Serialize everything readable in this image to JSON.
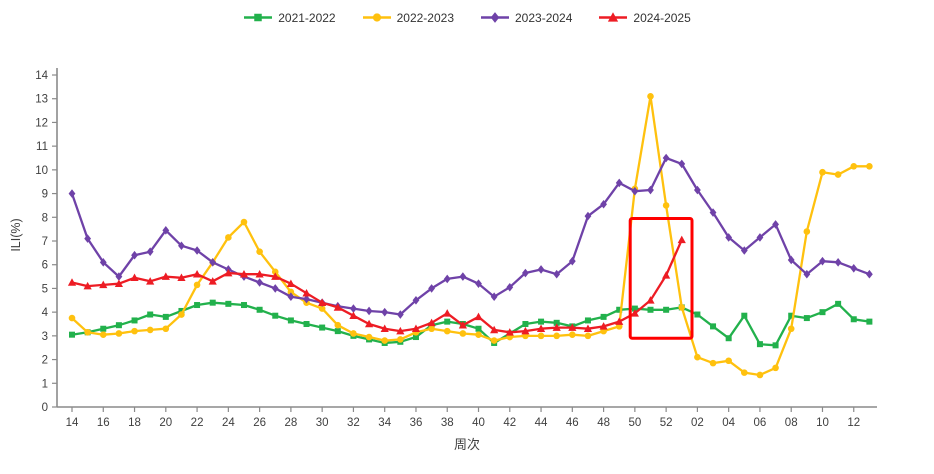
{
  "page": {
    "background": "#ffffff"
  },
  "chart_data": {
    "type": "line",
    "title": "",
    "xlabel": "周次",
    "ylabel": "ILI(%)",
    "ylim": [
      0,
      14
    ],
    "y_ticks": [
      0,
      1,
      2,
      3,
      4,
      5,
      6,
      7,
      8,
      9,
      10,
      11,
      12,
      13,
      14
    ],
    "grid": false,
    "legend_position": "top",
    "categories": [
      "14",
      "15",
      "16",
      "17",
      "18",
      "19",
      "20",
      "21",
      "22",
      "23",
      "24",
      "25",
      "26",
      "27",
      "28",
      "29",
      "30",
      "31",
      "32",
      "33",
      "34",
      "35",
      "36",
      "37",
      "38",
      "39",
      "40",
      "41",
      "42",
      "43",
      "44",
      "45",
      "46",
      "47",
      "48",
      "49",
      "50",
      "51",
      "52",
      "01",
      "02",
      "03",
      "04",
      "05",
      "06",
      "07",
      "08",
      "09",
      "10",
      "11",
      "12",
      "13"
    ],
    "series": [
      {
        "name": "2021-2022",
        "marker": "square",
        "color": "#22B14C",
        "values": [
          3.05,
          3.15,
          3.3,
          3.45,
          3.65,
          3.9,
          3.8,
          4.05,
          4.3,
          4.4,
          4.35,
          4.3,
          4.1,
          3.85,
          3.65,
          3.5,
          3.35,
          3.2,
          3.0,
          2.85,
          2.7,
          2.75,
          2.95,
          3.45,
          3.6,
          3.5,
          3.3,
          2.7,
          3.1,
          3.5,
          3.6,
          3.55,
          3.4,
          3.65,
          3.8,
          4.1,
          4.15,
          4.1,
          4.1,
          4.2,
          3.9,
          3.4,
          2.9,
          3.85,
          2.65,
          2.6,
          3.85,
          3.75,
          4.0,
          4.35,
          3.7,
          3.6
        ]
      },
      {
        "name": "2022-2023",
        "marker": "circle",
        "color": "#FFC10E",
        "values": [
          3.75,
          3.15,
          3.05,
          3.1,
          3.2,
          3.25,
          3.3,
          3.9,
          5.15,
          6.1,
          7.15,
          7.8,
          6.55,
          5.7,
          4.85,
          4.4,
          4.15,
          3.45,
          3.1,
          2.95,
          2.8,
          2.85,
          3.15,
          3.3,
          3.2,
          3.1,
          3.05,
          2.8,
          2.95,
          3.0,
          3.0,
          3.0,
          3.05,
          3.0,
          3.2,
          3.4,
          9.2,
          13.1,
          8.5,
          4.2,
          2.1,
          1.85,
          1.95,
          1.45,
          1.35,
          1.65,
          3.3,
          7.4,
          9.9,
          9.8,
          10.15,
          10.15
        ]
      },
      {
        "name": "2023-2024",
        "marker": "diamond",
        "color": "#6F42A8",
        "values": [
          9.0,
          7.1,
          6.1,
          5.5,
          6.4,
          6.55,
          7.45,
          6.8,
          6.6,
          6.1,
          5.8,
          5.5,
          5.25,
          5.0,
          4.65,
          4.55,
          4.4,
          4.25,
          4.15,
          4.05,
          4.0,
          3.9,
          4.5,
          5.0,
          5.4,
          5.5,
          5.2,
          4.65,
          5.05,
          5.65,
          5.8,
          5.6,
          6.15,
          8.05,
          8.55,
          9.45,
          9.1,
          9.15,
          10.5,
          10.25,
          9.15,
          8.2,
          7.15,
          6.6,
          7.15,
          7.7,
          6.2,
          5.6,
          6.15,
          6.1,
          5.85,
          5.6
        ]
      },
      {
        "name": "2024-2025",
        "marker": "triangle",
        "color": "#ED1C24",
        "values": [
          5.25,
          5.1,
          5.15,
          5.2,
          5.45,
          5.3,
          5.5,
          5.45,
          5.6,
          5.3,
          5.65,
          5.6,
          5.6,
          5.5,
          5.2,
          4.8,
          4.4,
          4.2,
          3.85,
          3.5,
          3.3,
          3.2,
          3.3,
          3.55,
          3.95,
          3.45,
          3.8,
          3.25,
          3.15,
          3.2,
          3.3,
          3.35,
          3.35,
          3.3,
          3.4,
          3.6,
          3.95,
          4.5,
          5.55,
          7.05,
          null,
          null,
          null,
          null,
          null,
          null,
          null,
          null,
          null,
          null,
          null,
          null
        ]
      }
    ],
    "highlight_box": {
      "weeks": "50-01",
      "x_from_index": 35.7,
      "x_to_index": 39.65,
      "y_from": 2.9,
      "y_to": 7.95,
      "color": "#FF0000"
    }
  }
}
